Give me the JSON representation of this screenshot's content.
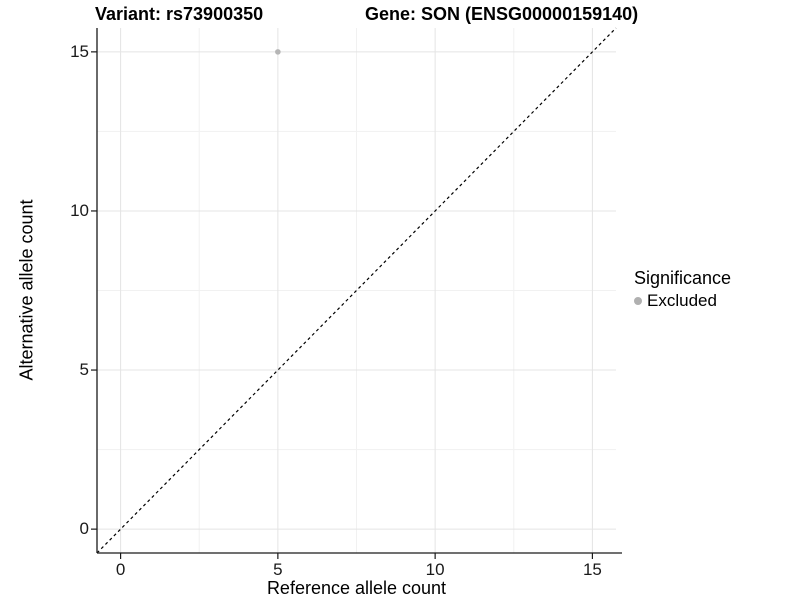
{
  "chart_data": {
    "type": "scatter",
    "titles": {
      "left": "Variant: rs73900350",
      "right": "Gene: SON (ENSG00000159140)"
    },
    "xlabel": "Reference allele count",
    "ylabel": "Alternative allele count",
    "xlim": [
      -0.75,
      15.75
    ],
    "ylim": [
      -0.75,
      15.75
    ],
    "xticks": [
      0,
      5,
      10,
      15
    ],
    "yticks": [
      0,
      5,
      10,
      15
    ],
    "minor_ticks": [
      2.5,
      7.5,
      12.5
    ],
    "grid": "major and minor, on white background",
    "points": [
      {
        "x": 5,
        "y": 15,
        "series": "Excluded",
        "color": "#b5b5b5",
        "radius": 2.8
      }
    ],
    "reference_line": {
      "kind": "identity y=x",
      "style": "dashed",
      "color": "#000000"
    },
    "legend": {
      "title": "Significance",
      "position": "right",
      "entries": [
        {
          "label": "Excluded",
          "color": "#b0b0b0"
        }
      ]
    },
    "style": {
      "major_grid_color": "#e4e4e4",
      "minor_grid_color": "#f1f1f1",
      "axis_line_color": "#1a1a1a",
      "tick_color": "#1a1a1a"
    }
  }
}
